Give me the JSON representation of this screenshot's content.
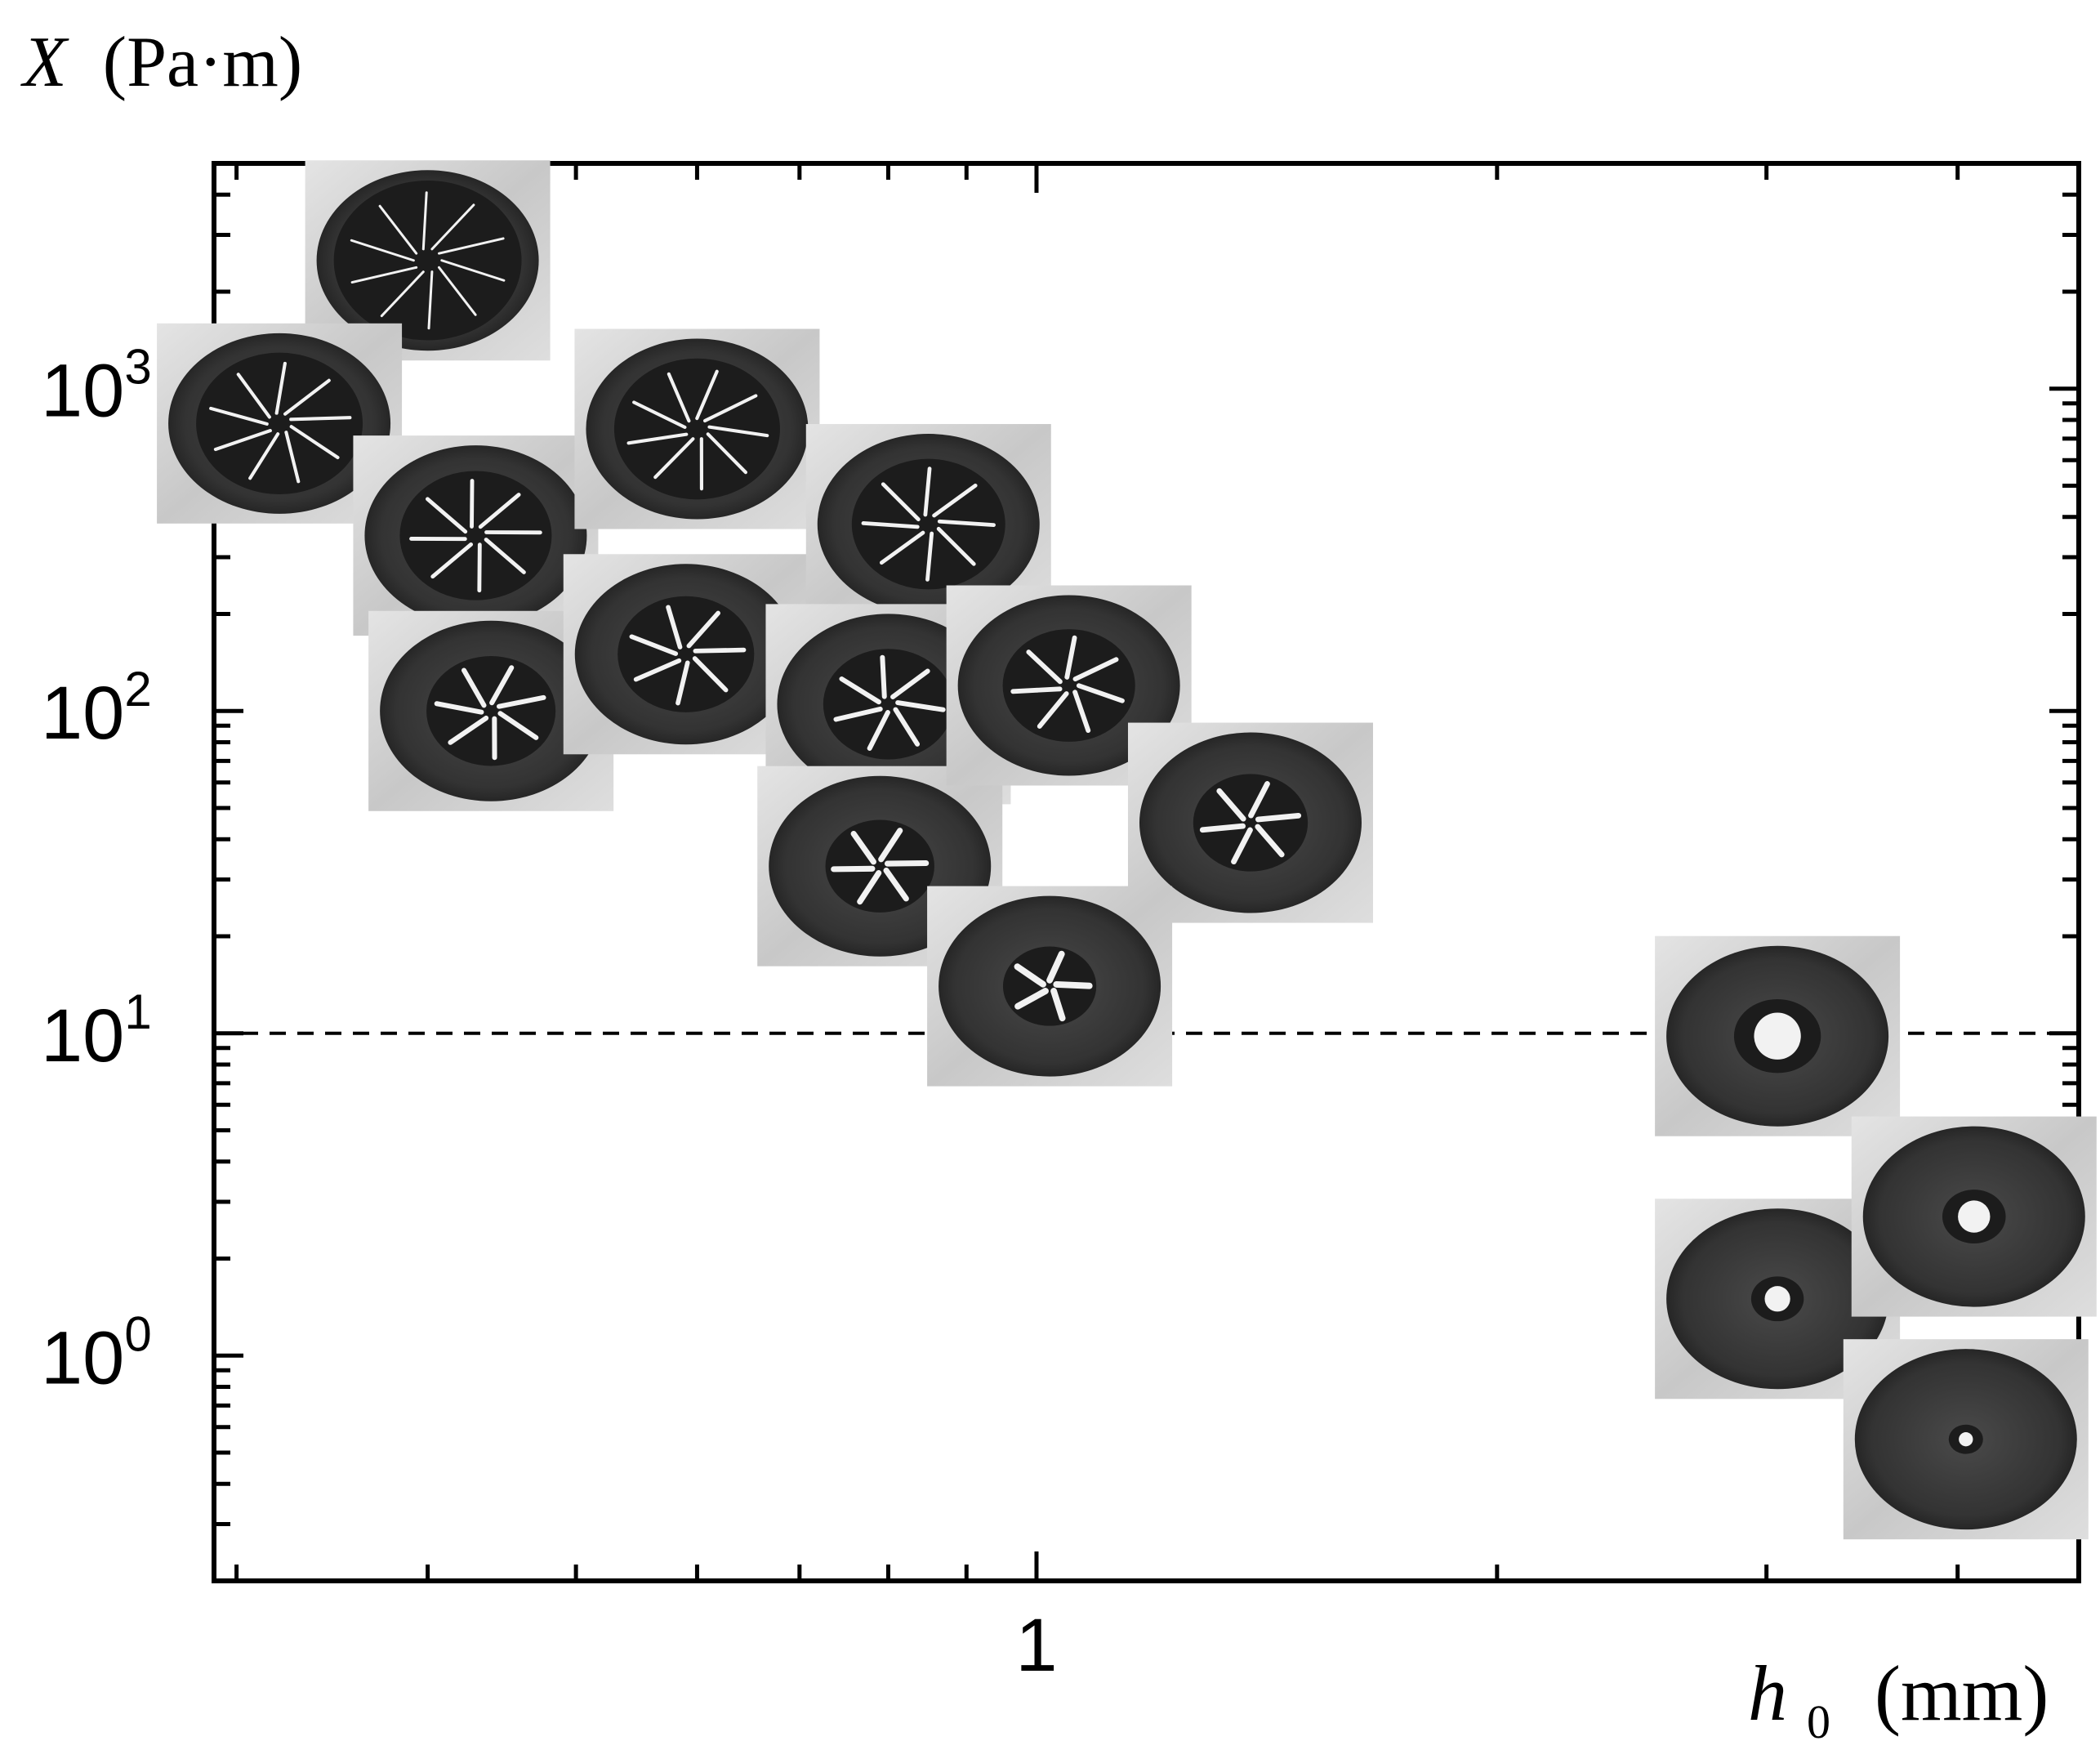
{
  "chart_data": {
    "type": "scatter",
    "title": "",
    "ylabel": {
      "symbol": "X",
      "unit": "(Pa·m)"
    },
    "xlabel": {
      "symbol": "h",
      "subscript": "0",
      "unit": "(mm)"
    },
    "x_scale": "log",
    "y_scale": "log",
    "xlim": [
      0.29,
      4.8
    ],
    "ylim": [
      0.2,
      5000
    ],
    "x_major_ticks": [
      {
        "value": 1,
        "label": "1"
      }
    ],
    "y_major_ticks": [
      {
        "value": 1,
        "base": "10",
        "exp": "0"
      },
      {
        "value": 10,
        "base": "10",
        "exp": "1"
      },
      {
        "value": 100,
        "base": "10",
        "exp": "2"
      },
      {
        "value": 1000,
        "base": "10",
        "exp": "3"
      }
    ],
    "grid": false,
    "reference_line": {
      "y": 10,
      "style": "dashed"
    },
    "points": [
      {
        "x": 0.4,
        "y": 2500,
        "thumbnail": "dense-crack-disc"
      },
      {
        "x": 0.32,
        "y": 780,
        "thumbnail": "ring-crack-network"
      },
      {
        "x": 0.43,
        "y": 350,
        "thumbnail": "small-crack-network"
      },
      {
        "x": 0.44,
        "y": 100,
        "thumbnail": "few-cracks"
      },
      {
        "x": 0.6,
        "y": 750,
        "thumbnail": "dense-crack-network"
      },
      {
        "x": 0.59,
        "y": 150,
        "thumbnail": "branching-crack"
      },
      {
        "x": 0.85,
        "y": 380,
        "thumbnail": "large-branching-crack"
      },
      {
        "x": 0.8,
        "y": 105,
        "thumbnail": "star-crack"
      },
      {
        "x": 0.79,
        "y": 33,
        "thumbnail": "small-hole-crack"
      },
      {
        "x": 1.05,
        "y": 120,
        "thumbnail": "wide-crack"
      },
      {
        "x": 1.38,
        "y": 45,
        "thumbnail": "single-crack"
      },
      {
        "x": 1.02,
        "y": 14,
        "thumbnail": "tiny-hole"
      },
      {
        "x": 3.05,
        "y": 9.8,
        "thumbnail": "circular-hole"
      },
      {
        "x": 3.05,
        "y": 1.5,
        "thumbnail": "small-circular-hole"
      },
      {
        "x": 4.1,
        "y": 2.7,
        "thumbnail": "circular-hole-2"
      },
      {
        "x": 4.05,
        "y": 0.55,
        "thumbnail": "tiny-circular-hole"
      }
    ]
  },
  "colors": {
    "axis": "#000000",
    "background": "#ffffff",
    "dish_outer": "#d6d6d6",
    "substrate": "#3b3b3b",
    "coating": "#1c1c1c",
    "crack": "#f2f2f2"
  }
}
